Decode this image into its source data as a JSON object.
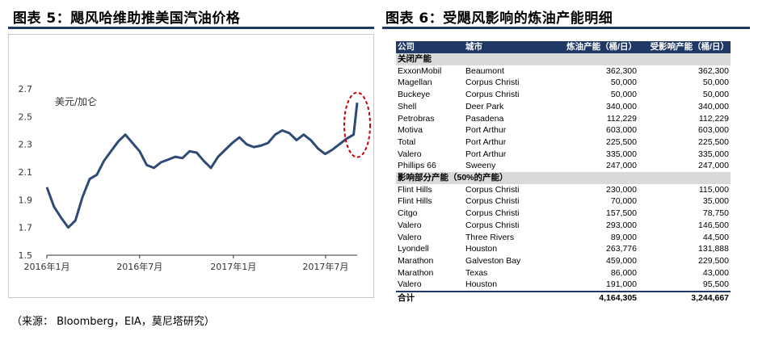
{
  "figure5": {
    "title": "图表 5：飓风哈维助推美国汽油价格",
    "chart_data": {
      "type": "line",
      "ylabel": "美元/加仑",
      "ylim": [
        1.5,
        2.7
      ],
      "yticks": [
        "2.7",
        "2.5",
        "2.3",
        "2.1",
        "1.9",
        "1.7",
        "1.5"
      ],
      "xticks": [
        "2016年1月",
        "2016年7月",
        "2017年1月",
        "2017年7月"
      ],
      "x": [
        "2016-01-01",
        "2016-01-15",
        "2016-01-29",
        "2016-02-12",
        "2016-02-26",
        "2016-03-11",
        "2016-03-25",
        "2016-04-08",
        "2016-04-22",
        "2016-05-06",
        "2016-05-20",
        "2016-06-03",
        "2016-06-17",
        "2016-07-01",
        "2016-07-15",
        "2016-07-29",
        "2016-08-12",
        "2016-08-26",
        "2016-09-09",
        "2016-09-23",
        "2016-10-07",
        "2016-10-21",
        "2016-11-04",
        "2016-11-18",
        "2016-12-02",
        "2016-12-16",
        "2016-12-30",
        "2017-01-13",
        "2017-01-27",
        "2017-02-10",
        "2017-02-24",
        "2017-03-10",
        "2017-03-24",
        "2017-04-07",
        "2017-04-21",
        "2017-05-05",
        "2017-05-19",
        "2017-06-02",
        "2017-06-16",
        "2017-06-30",
        "2017-07-14",
        "2017-07-28",
        "2017-08-11",
        "2017-08-25",
        "2017-09-01"
      ],
      "values": [
        1.99,
        1.85,
        1.77,
        1.7,
        1.75,
        1.92,
        2.05,
        2.08,
        2.18,
        2.25,
        2.32,
        2.37,
        2.31,
        2.25,
        2.15,
        2.13,
        2.17,
        2.19,
        2.21,
        2.2,
        2.25,
        2.24,
        2.18,
        2.13,
        2.21,
        2.26,
        2.31,
        2.35,
        2.3,
        2.28,
        2.29,
        2.31,
        2.37,
        2.4,
        2.38,
        2.33,
        2.37,
        2.33,
        2.27,
        2.23,
        2.26,
        2.3,
        2.34,
        2.37,
        2.6
      ],
      "highlight": "2017-09-01"
    }
  },
  "figure6": {
    "title": "图表 6：受飓风影响的炼油产能明细",
    "headers": [
      "公司",
      "城市",
      "炼油产能（桶/日）",
      "受影响产能（桶/日）"
    ],
    "section1": "关闭产能",
    "rows1": [
      [
        "ExxonMobil",
        "Beaumont",
        "362,300",
        "362,300"
      ],
      [
        "Magellan",
        "Corpus Christi",
        "50,000",
        "50,000"
      ],
      [
        "Buckeye",
        "Corpus Christi",
        "50,000",
        "50,000"
      ],
      [
        "Shell",
        "Deer Park",
        "340,000",
        "340,000"
      ],
      [
        "Petrobras",
        "Pasadena",
        "112,229",
        "112,229"
      ],
      [
        "Motiva",
        "Port Arthur",
        "603,000",
        "603,000"
      ],
      [
        "Total",
        "Port Arthur",
        "225,500",
        "225,500"
      ],
      [
        "Valero",
        "Port Arthur",
        "335,000",
        "335,000"
      ],
      [
        "Phillips 66",
        "Sweeny",
        "247,000",
        "247,000"
      ]
    ],
    "section2": "影响部分产能（50%的产能）",
    "rows2": [
      [
        "Flint Hills",
        "Corpus Christi",
        "230,000",
        "115,000"
      ],
      [
        "Flint Hills",
        "Corpus Christi",
        "70,000",
        "35,000"
      ],
      [
        "Citgo",
        "Corpus Christi",
        "157,500",
        "78,750"
      ],
      [
        "Valero",
        "Corpus Christi",
        "293,000",
        "146,500"
      ],
      [
        "Valero",
        "Three Rivers",
        "89,000",
        "44,500"
      ],
      [
        "Lyondell",
        "Houston",
        "263,776",
        "131,888"
      ],
      [
        "Marathon",
        "Galveston Bay",
        "459,000",
        "229,500"
      ],
      [
        "Marathon",
        "Texas",
        "86,000",
        "43,000"
      ],
      [
        "Valero",
        "Houston",
        "191,000",
        "95,500"
      ]
    ],
    "total": [
      "合计",
      "",
      "4,164,305",
      "3,244,667"
    ]
  },
  "source": "（来源： Bloomberg，EIA，莫尼塔研究）",
  "colors": {
    "line": "#2e4a75",
    "highlight": "#c00000",
    "header": "#1f3864"
  }
}
